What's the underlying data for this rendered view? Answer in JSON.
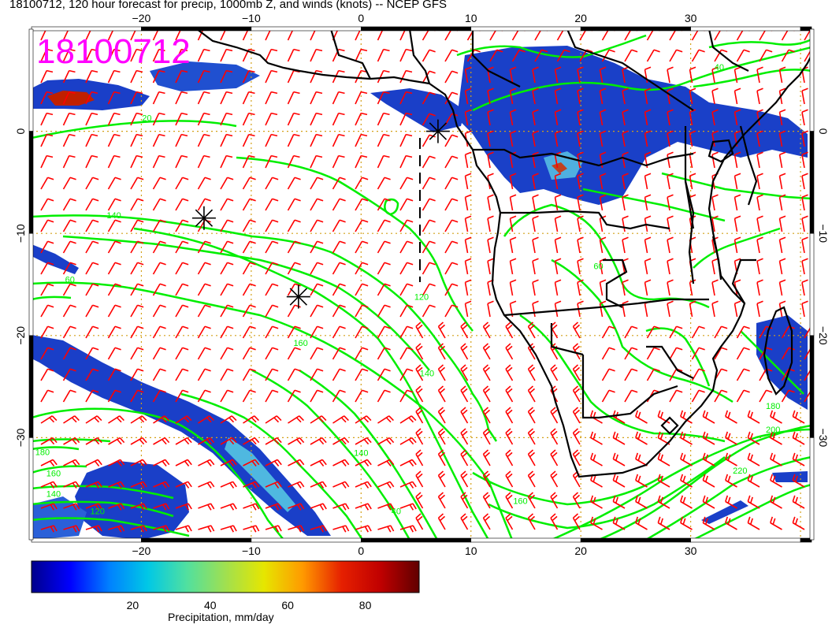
{
  "title": "18100712, 120 hour forecast for precip, 1000mb Z, and winds (knots) -- NCEP GFS",
  "map_stamp": "18100712",
  "axes": {
    "x_ticks": [
      -20,
      -10,
      0,
      10,
      20,
      30
    ],
    "x_tick_labels": [
      "−20",
      "−10",
      "0",
      "10",
      "20",
      "30"
    ],
    "y_ticks": [
      0,
      -10,
      -20,
      -30
    ],
    "y_tick_labels": [
      "0",
      "−10",
      "−20",
      "−30"
    ],
    "lon_range": [
      -30,
      41
    ],
    "lat_range": [
      -40,
      10
    ],
    "grid": true
  },
  "contour_labels": [
    {
      "text": "120",
      "lon": -24,
      "lat": -37.5
    },
    {
      "text": "140",
      "lon": -28,
      "lat": -35.8
    },
    {
      "text": "160",
      "lon": -28,
      "lat": -33.8
    },
    {
      "text": "180",
      "lon": -29,
      "lat": -31.7
    },
    {
      "text": "140",
      "lon": -22.5,
      "lat": -8.5
    },
    {
      "text": "60",
      "lon": -26.5,
      "lat": -14.8
    },
    {
      "text": "160",
      "lon": -5.5,
      "lat": -21
    },
    {
      "text": "140",
      "lon": 6.0,
      "lat": -24
    },
    {
      "text": "120",
      "lon": 5.5,
      "lat": -16.5
    },
    {
      "text": "140",
      "lon": 0,
      "lat": -31.8
    },
    {
      "text": "40",
      "lon": 3.2,
      "lat": -37.5
    },
    {
      "text": "160",
      "lon": 14.5,
      "lat": -36.5
    },
    {
      "text": "20",
      "lon": -19.5,
      "lat": 1
    },
    {
      "text": "60",
      "lon": 21.6,
      "lat": -13.5
    },
    {
      "text": "200",
      "lon": 37.5,
      "lat": -29.5
    },
    {
      "text": "220",
      "lon": 34.5,
      "lat": -33.5
    },
    {
      "text": "180",
      "lon": 37.5,
      "lat": -27.2
    },
    {
      "text": "40",
      "lon": 32.6,
      "lat": 6.0
    }
  ],
  "markers": [
    {
      "name": "storm-marker-1",
      "lon": -14.3,
      "lat": -8.5
    },
    {
      "name": "storm-marker-2",
      "lon": -5.7,
      "lat": -16.2
    },
    {
      "name": "storm-marker-3",
      "lon": 7.0,
      "lat": 0.0
    }
  ],
  "colorbar": {
    "label": "Precipitation, mm/day",
    "min": 0,
    "max": 100,
    "ticks": [
      20,
      40,
      60,
      80
    ],
    "tick_labels": [
      "20",
      "40",
      "60",
      "80"
    ],
    "colors": [
      "#00008b",
      "#0000ff",
      "#0080ff",
      "#00c8e6",
      "#50e0a0",
      "#a0e050",
      "#e6e600",
      "#ff9900",
      "#e62000",
      "#c00000",
      "#600000"
    ]
  },
  "map_colors": {
    "contour": "#00ee00",
    "wind_barb": "#ff0000",
    "coastline": "#000000",
    "grid": "#d4a017"
  }
}
